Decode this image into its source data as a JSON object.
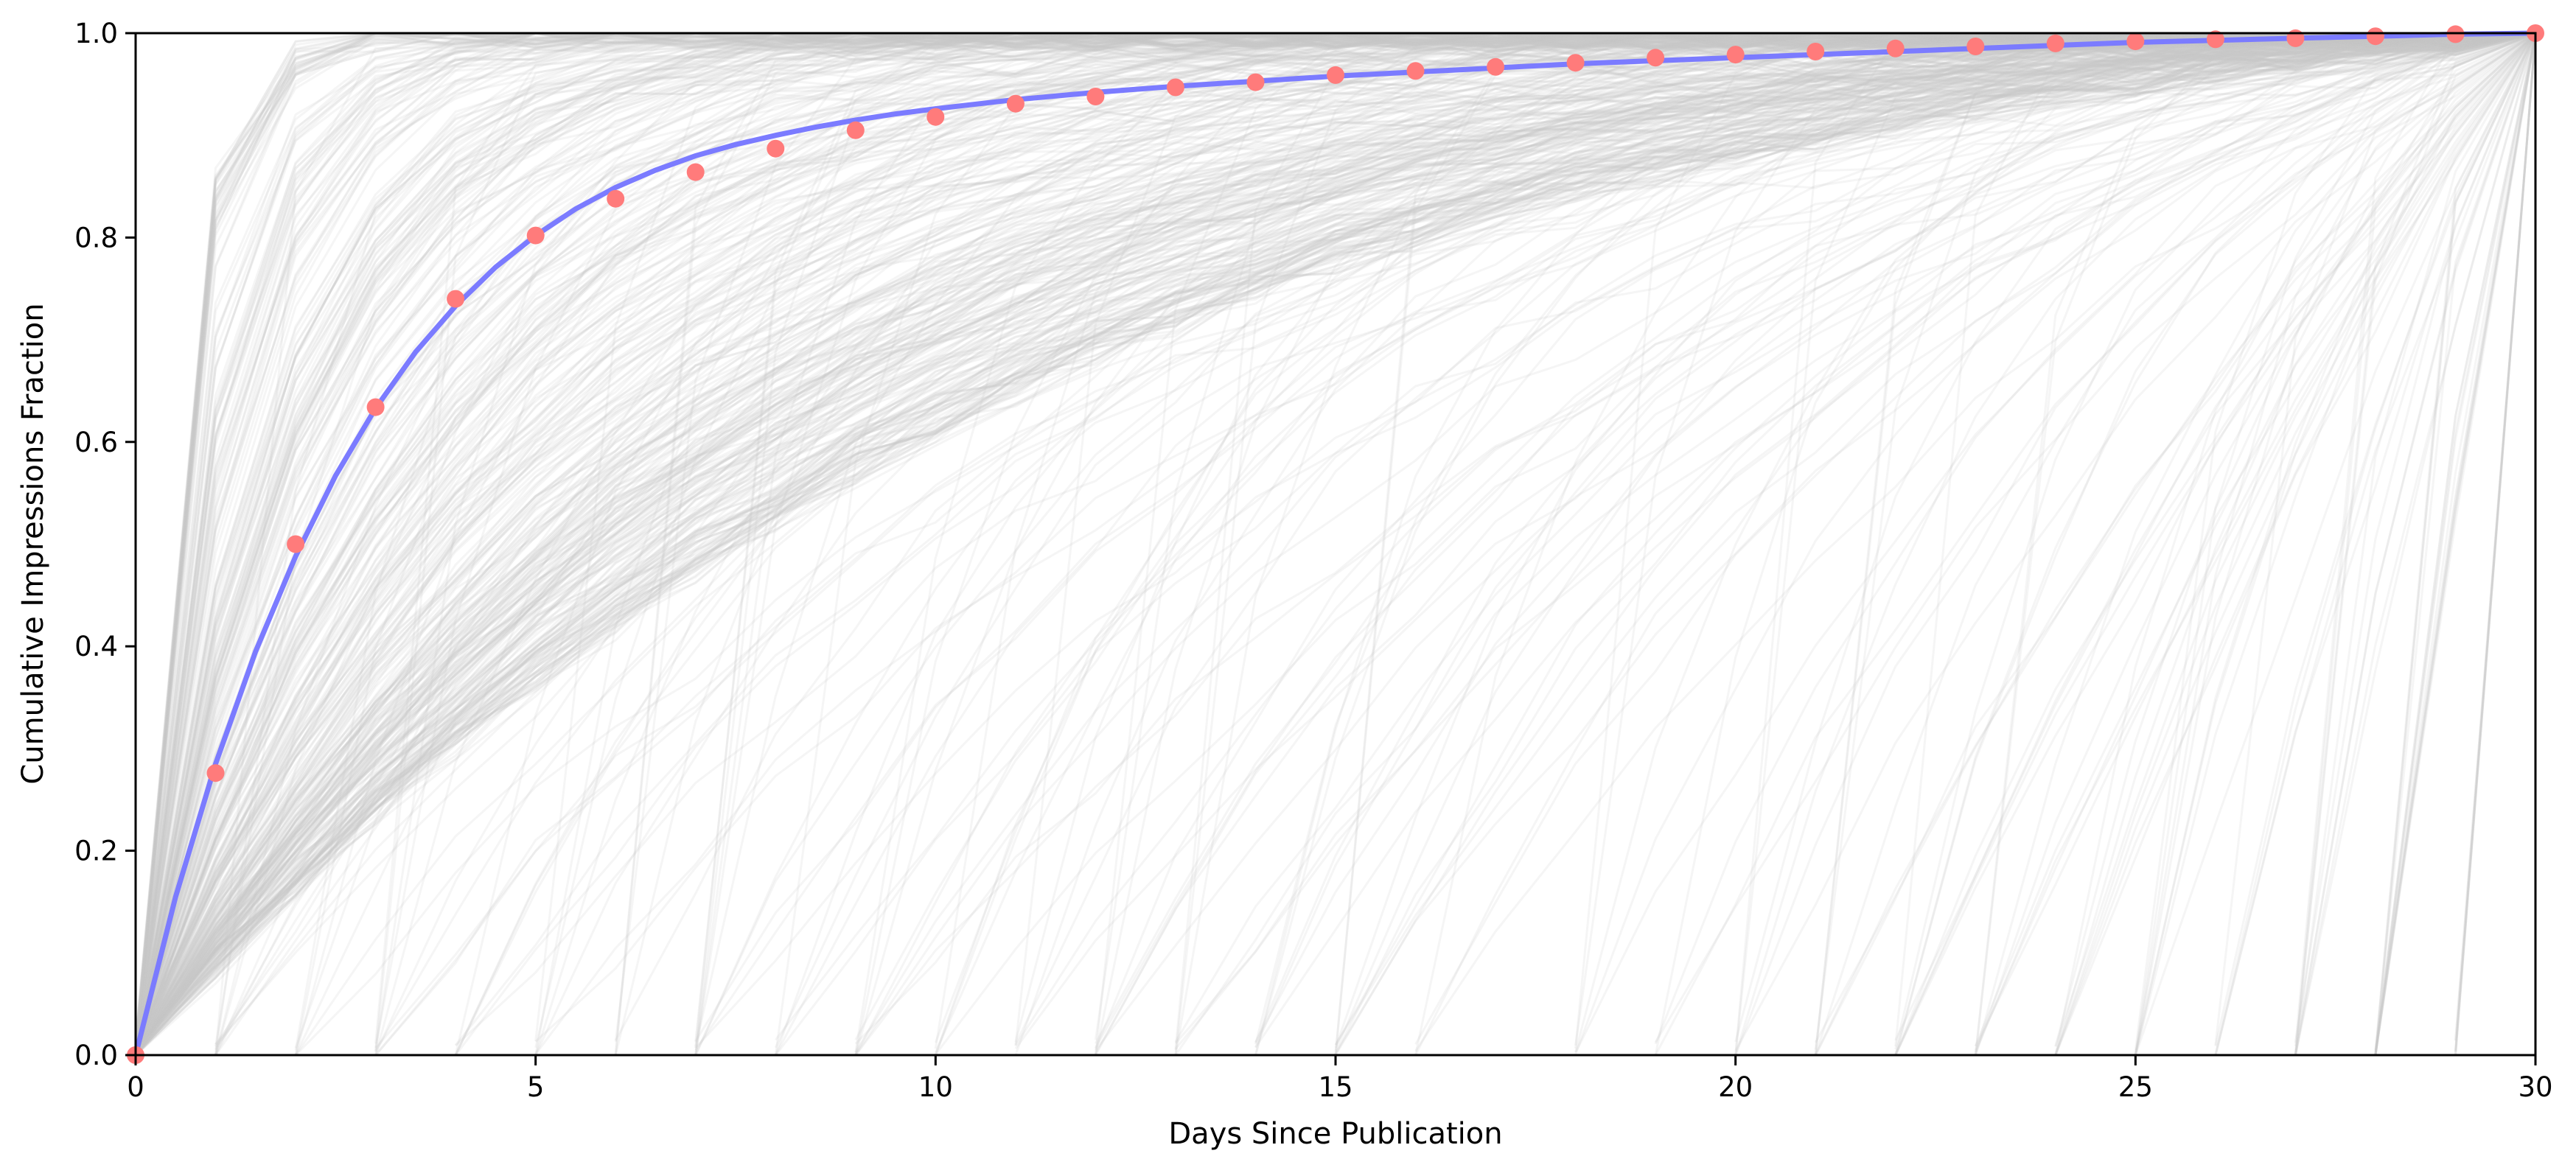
{
  "chart_data": {
    "type": "line",
    "title": "",
    "xlabel": "Days Since Publication",
    "ylabel": "Cumulative Impressions Fraction",
    "xlim": [
      0,
      30
    ],
    "ylim": [
      0,
      1
    ],
    "x_ticks": [
      0,
      5,
      10,
      15,
      20,
      25,
      30
    ],
    "y_ticks": [
      0.0,
      0.2,
      0.4,
      0.6,
      0.8,
      1.0
    ],
    "x_tick_labels": [
      "0",
      "5",
      "10",
      "15",
      "20",
      "25",
      "30"
    ],
    "y_tick_labels": [
      "0.0",
      "0.2",
      "0.4",
      "0.6",
      "0.8",
      "1.0"
    ],
    "grid": false,
    "legend": "none",
    "background_series": {
      "description_hidden": true,
      "color": "#c8c8c8",
      "count": 600
    },
    "series": [
      {
        "kind": "scatter",
        "color": "#ff7b7b",
        "x": [
          0,
          1,
          2,
          3,
          4,
          5,
          6,
          7,
          8,
          9,
          10,
          11,
          12,
          13,
          14,
          15,
          16,
          17,
          18,
          19,
          20,
          21,
          22,
          23,
          24,
          25,
          26,
          27,
          28,
          29,
          30
        ],
        "y": [
          0.0,
          0.276,
          0.5,
          0.634,
          0.74,
          0.802,
          0.838,
          0.864,
          0.887,
          0.905,
          0.918,
          0.931,
          0.938,
          0.947,
          0.952,
          0.959,
          0.963,
          0.967,
          0.971,
          0.976,
          0.979,
          0.982,
          0.985,
          0.987,
          0.99,
          0.992,
          0.994,
          0.995,
          0.997,
          0.999,
          1.0
        ]
      },
      {
        "kind": "line",
        "color": "#7b7bff",
        "x": [
          0,
          0.5,
          1,
          1.5,
          2,
          2.5,
          3,
          3.5,
          4,
          4.5,
          5,
          5.5,
          6,
          6.5,
          7,
          7.5,
          8,
          8.5,
          9,
          9.5,
          10,
          11,
          12,
          13,
          14,
          15,
          16,
          17,
          18,
          19,
          20,
          21,
          22,
          23,
          24,
          25,
          26,
          27,
          28,
          29,
          30
        ],
        "y": [
          0.0,
          0.155,
          0.285,
          0.395,
          0.488,
          0.567,
          0.633,
          0.688,
          0.733,
          0.771,
          0.802,
          0.828,
          0.849,
          0.866,
          0.88,
          0.891,
          0.9,
          0.908,
          0.915,
          0.921,
          0.926,
          0.935,
          0.942,
          0.948,
          0.953,
          0.958,
          0.962,
          0.966,
          0.97,
          0.973,
          0.976,
          0.979,
          0.982,
          0.985,
          0.988,
          0.991,
          0.993,
          0.995,
          0.997,
          0.999,
          1.0
        ]
      }
    ]
  }
}
